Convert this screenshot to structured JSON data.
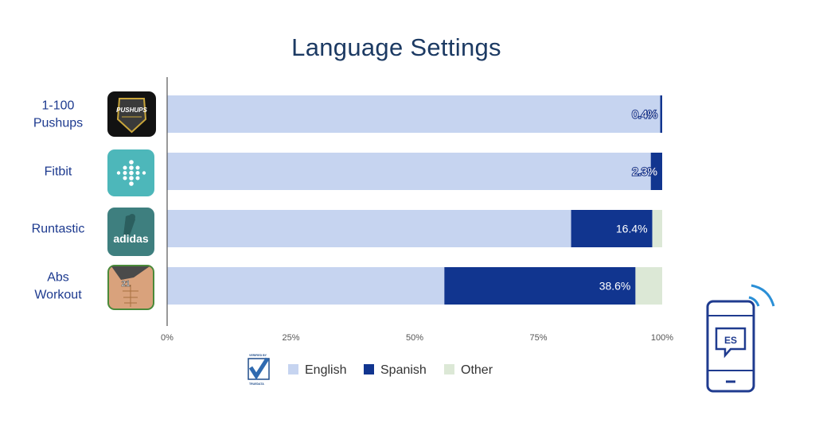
{
  "chart_data": {
    "type": "bar",
    "orientation": "horizontal",
    "stacked": true,
    "normalized": true,
    "title": "Language Settings",
    "categories": [
      "1-100\nPushups",
      "Fitbit",
      "Runtastic",
      "Abs\nWorkout"
    ],
    "series": [
      {
        "name": "English",
        "color": "#c6d4f0",
        "values": [
          99.6,
          97.7,
          81.6,
          56.0
        ]
      },
      {
        "name": "Spanish",
        "color": "#11358f",
        "values": [
          0.4,
          2.3,
          16.4,
          38.6
        ]
      },
      {
        "name": "Other",
        "color": "#dce8d6",
        "values": [
          0.0,
          0.0,
          2.0,
          5.4
        ]
      }
    ],
    "data_labels": [
      "0.4%",
      "2.3%",
      "16.4%",
      "38.6%"
    ],
    "xlim": [
      0,
      100
    ],
    "xticks": [
      "0%",
      "25%",
      "50%",
      "75%",
      "100%"
    ],
    "grid": false,
    "legend_position": "bottom"
  },
  "app_icons": [
    "pushups-app-icon",
    "fitbit-app-icon",
    "runtastic-adidas-app-icon",
    "abs-workout-app-icon"
  ],
  "icon_texts": {
    "pushups": "PUSHUPS",
    "adidas": "adidas",
    "abs": "21"
  },
  "badge": {
    "top": "VERIFIED BY",
    "bottom": "TRUEDATA"
  },
  "phone_icon_text": "ES"
}
